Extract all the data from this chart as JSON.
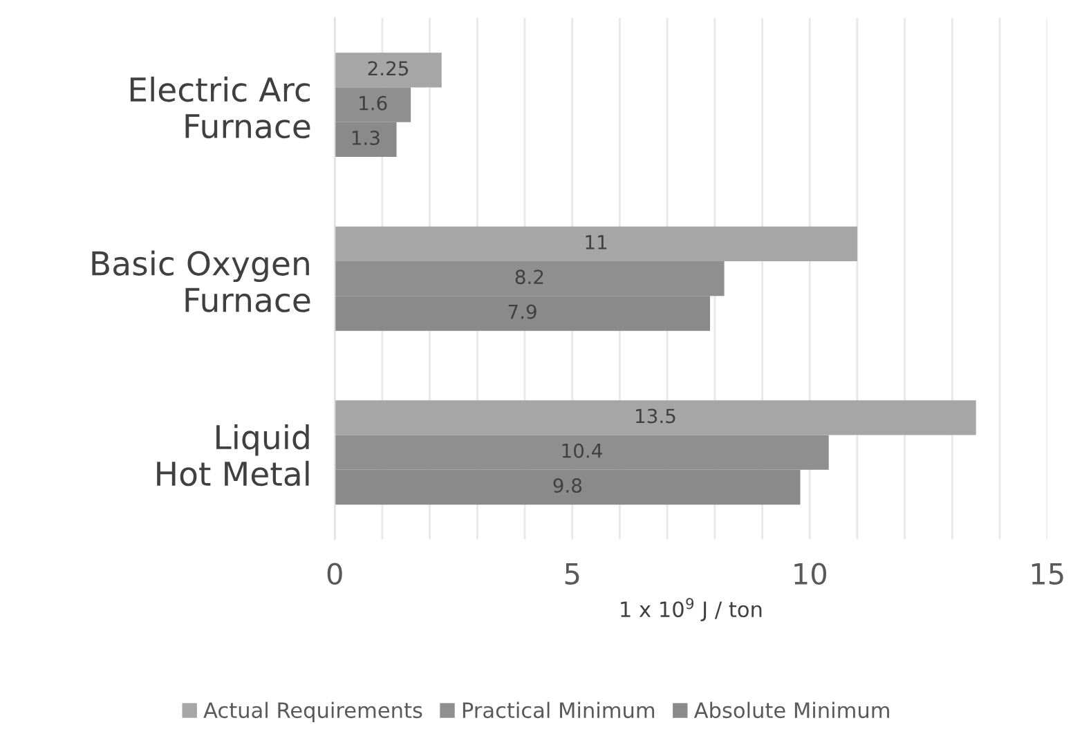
{
  "chart_data": {
    "type": "bar",
    "orientation": "horizontal",
    "xlabel": "1 x 10$^{9}$ J / ton",
    "categories": [
      "Electric Arc\nFurnace",
      "Basic Oxygen\nFurnace",
      "Liquid\nHot Metal"
    ],
    "series": [
      {
        "name": "Actual Requirements",
        "color": "#a6a6a6",
        "values": [
          2.25,
          11,
          13.5
        ]
      },
      {
        "name": "Practical Minimum",
        "color": "#8f8f8f",
        "values": [
          1.6,
          8.2,
          10.4
        ]
      },
      {
        "name": "Absolute Minimum",
        "color": "#8a8a8a",
        "values": [
          1.3,
          7.9,
          9.8
        ]
      }
    ],
    "xlim": [
      0,
      15
    ],
    "xticks": [
      0,
      {
        "value": 1,
        "label": null
      },
      {
        "value": 2,
        "label": null
      },
      {
        "value": 3,
        "label": null
      },
      {
        "value": 4,
        "label": null
      },
      5,
      {
        "value": 6,
        "label": null
      },
      {
        "value": 7,
        "label": null
      },
      {
        "value": 8,
        "label": null
      },
      {
        "value": 9,
        "label": null
      },
      10,
      {
        "value": 11,
        "label": null
      },
      {
        "value": 12,
        "label": null
      },
      {
        "value": 13,
        "label": null
      },
      {
        "value": 14,
        "label": null
      },
      15
    ],
    "grid": "x",
    "legend": "bottom",
    "data_labels": true
  }
}
